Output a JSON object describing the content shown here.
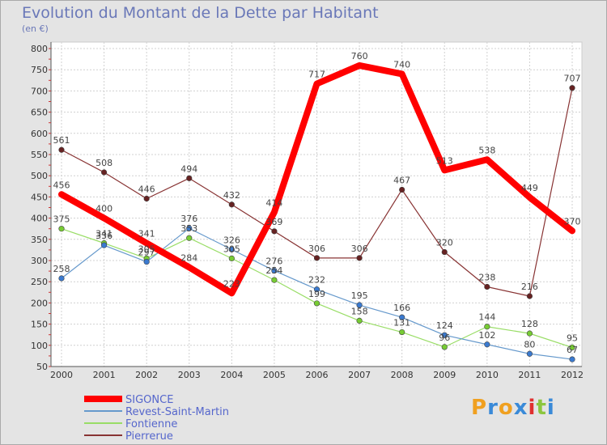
{
  "title": "Evolution du Montant de la Dette par Habitant",
  "subtitle": "(en €)",
  "brand": {
    "letters": [
      "P",
      "r",
      "o",
      "x",
      "i",
      "t",
      "i"
    ],
    "colors": [
      "#f0a020",
      "#3a8ad8",
      "#f0a020",
      "#3a8ad8",
      "#e03030",
      "#8cc63f",
      "#3a8ad8"
    ]
  },
  "chart_data": {
    "type": "line",
    "x": [
      "2000",
      "2001",
      "2002",
      "2003",
      "2004",
      "2005",
      "2006",
      "2007",
      "2008",
      "2009",
      "2010",
      "2011",
      "2012"
    ],
    "ylim": [
      50,
      800
    ],
    "yticks": [
      50,
      100,
      150,
      200,
      250,
      300,
      350,
      400,
      450,
      500,
      550,
      600,
      650,
      700,
      750,
      800
    ],
    "grid": true,
    "legend_position": "bottom-left",
    "series": [
      {
        "name": "SIGONCE",
        "color": "#ff0000",
        "width": 8,
        "marker": "none",
        "values": [
          456,
          400,
          341,
          284,
          223,
          414,
          717,
          760,
          740,
          513,
          538,
          449,
          370
        ]
      },
      {
        "name": "Revest-Saint-Martin",
        "color": "#6699cc",
        "width": 1.2,
        "marker": "#3a7ad0",
        "values": [
          258,
          336,
          297,
          376,
          326,
          276,
          232,
          195,
          166,
          124,
          102,
          80,
          67
        ]
      },
      {
        "name": "Fontienne",
        "color": "#99dd66",
        "width": 1.2,
        "marker": "#77cc33",
        "values": [
          375,
          341,
          305,
          353,
          305,
          254,
          199,
          158,
          131,
          96,
          144,
          128,
          95
        ]
      },
      {
        "name": "Pierrerue",
        "color": "#883333",
        "width": 1.2,
        "marker": "#662222",
        "values": [
          561,
          508,
          446,
          494,
          432,
          369,
          306,
          306,
          467,
          320,
          238,
          216,
          707
        ]
      }
    ]
  }
}
